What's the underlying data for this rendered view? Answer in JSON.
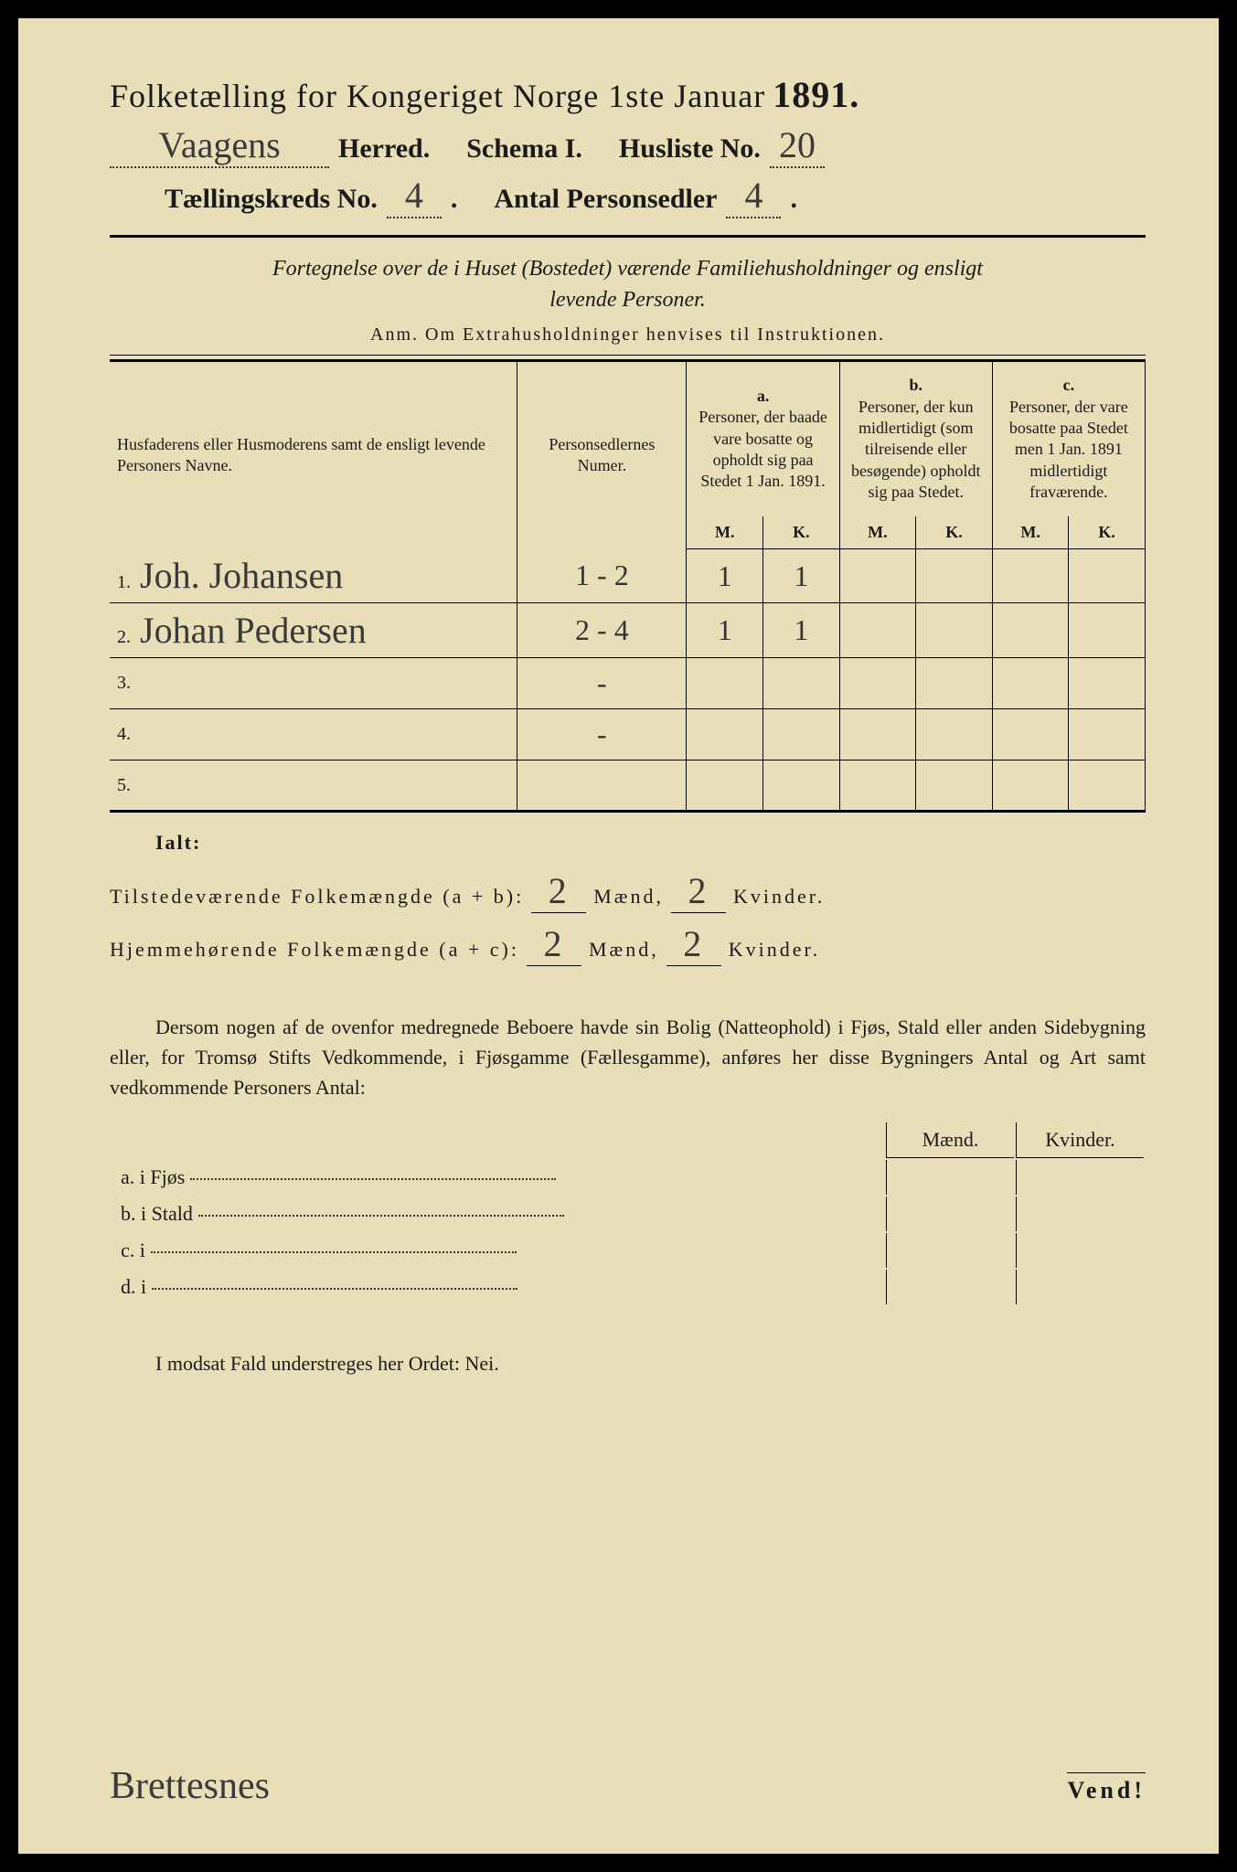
{
  "colors": {
    "paper": "#e8dfb8",
    "ink": "#1a1a1a",
    "handwriting": "#3a3a3a"
  },
  "title": {
    "text": "Folketælling for Kongeriget Norge 1ste Januar",
    "year": "1891."
  },
  "header": {
    "herred_value": "Vaagens",
    "herred_label": "Herred.",
    "schema_label": "Schema I.",
    "husliste_label": "Husliste No.",
    "husliste_value": "20",
    "kreds_label": "Tællingskreds No.",
    "kreds_value": "4",
    "antal_label": "Antal Personsedler",
    "antal_value": "4"
  },
  "subtitle": {
    "line1a": "Fortegnelse over de i Huset (Bostedet) værende Familiehusholdninger og ensligt",
    "line2": "levende Personer."
  },
  "anm": "Anm. Om Extrahusholdninger henvises til Instruktionen.",
  "table": {
    "col_name": "Husfaderens eller Husmoderens samt de ensligt levende Personers Navne.",
    "col_num": "Personsedlernes Numer.",
    "col_a_head": "a.",
    "col_a": "Personer, der baade vare bosatte og opholdt sig paa Stedet 1 Jan. 1891.",
    "col_b_head": "b.",
    "col_b": "Personer, der kun midlertidigt (som tilreisende eller besøgende) opholdt sig paa Stedet.",
    "col_c_head": "c.",
    "col_c": "Personer, der vare bosatte paa Stedet men 1 Jan. 1891 midlertidigt fraværende.",
    "m": "M.",
    "k": "K.",
    "rows": [
      {
        "n": "1.",
        "name": "Joh. Johansen",
        "num": "1 - 2",
        "a_m": "1",
        "a_k": "1",
        "b_m": "",
        "b_k": "",
        "c_m": "",
        "c_k": ""
      },
      {
        "n": "2.",
        "name": "Johan Pedersen",
        "num": "2 - 4",
        "a_m": "1",
        "a_k": "1",
        "b_m": "",
        "b_k": "",
        "c_m": "",
        "c_k": ""
      },
      {
        "n": "3.",
        "name": "",
        "num": "-",
        "a_m": "",
        "a_k": "",
        "b_m": "",
        "b_k": "",
        "c_m": "",
        "c_k": ""
      },
      {
        "n": "4.",
        "name": "",
        "num": "-",
        "a_m": "",
        "a_k": "",
        "b_m": "",
        "b_k": "",
        "c_m": "",
        "c_k": ""
      },
      {
        "n": "5.",
        "name": "",
        "num": "",
        "a_m": "",
        "a_k": "",
        "b_m": "",
        "b_k": "",
        "c_m": "",
        "c_k": ""
      }
    ]
  },
  "ialt": "Ialt:",
  "summary": {
    "line1_label": "Tilstedeværende Folkemængde (a + b):",
    "line1_m": "2",
    "maend": "Mænd,",
    "line1_k": "2",
    "kvinder": "Kvinder.",
    "line2_label": "Hjemmehørende Folkemængde (a + c):",
    "line2_m": "2",
    "line2_k": "2"
  },
  "para": "Dersom nogen af de ovenfor medregnede Beboere havde sin Bolig (Natteophold) i Fjøs, Stald eller anden Sidebygning eller, for Tromsø Stifts Vedkommende, i Fjøsgamme (Fællesgamme), anføres her disse Bygningers Antal og Art samt vedkommende Personers Antal:",
  "subrows": {
    "head_m": "Mænd.",
    "head_k": "Kvinder.",
    "a": "a. i    Fjøs",
    "b": "b. i    Stald",
    "c": "c. i",
    "d": "d. i"
  },
  "modsat": "I modsat Fald understreges her Ordet: Nei.",
  "signature": "Brettesnes",
  "vend": "Vend!"
}
